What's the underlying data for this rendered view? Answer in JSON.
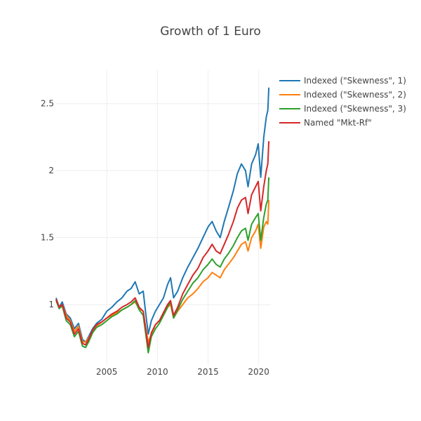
{
  "chart_data": {
    "type": "line",
    "title": "Growth of 1 Euro",
    "xlabel": "",
    "ylabel": "",
    "xlim": [
      2000.0,
      2021.2
    ],
    "ylim": [
      0.55,
      2.75
    ],
    "x_ticks": [
      2005,
      2010,
      2015,
      2020
    ],
    "y_ticks": [
      1,
      1.5,
      2,
      2.5
    ],
    "grid": true,
    "legend_position": "top-right",
    "series": [
      {
        "name": "Indexed (\"Skewness\", 1)",
        "color": "#1f77b4",
        "points": [
          [
            2000.0,
            1.05
          ],
          [
            2000.3,
            0.98
          ],
          [
            2000.6,
            1.02
          ],
          [
            2001.0,
            0.93
          ],
          [
            2001.4,
            0.9
          ],
          [
            2001.8,
            0.82
          ],
          [
            2002.2,
            0.86
          ],
          [
            2002.6,
            0.74
          ],
          [
            2002.9,
            0.72
          ],
          [
            2003.2,
            0.76
          ],
          [
            2003.6,
            0.82
          ],
          [
            2004.0,
            0.86
          ],
          [
            2004.5,
            0.89
          ],
          [
            2005.0,
            0.95
          ],
          [
            2005.5,
            0.98
          ],
          [
            2006.0,
            1.02
          ],
          [
            2006.5,
            1.05
          ],
          [
            2007.0,
            1.1
          ],
          [
            2007.4,
            1.12
          ],
          [
            2007.8,
            1.17
          ],
          [
            2008.2,
            1.08
          ],
          [
            2008.6,
            1.1
          ],
          [
            2008.9,
            0.9
          ],
          [
            2009.1,
            0.78
          ],
          [
            2009.4,
            0.88
          ],
          [
            2009.8,
            0.95
          ],
          [
            2010.2,
            1.0
          ],
          [
            2010.6,
            1.05
          ],
          [
            2011.0,
            1.15
          ],
          [
            2011.3,
            1.2
          ],
          [
            2011.6,
            1.05
          ],
          [
            2012.0,
            1.1
          ],
          [
            2012.5,
            1.2
          ],
          [
            2013.0,
            1.28
          ],
          [
            2013.5,
            1.35
          ],
          [
            2014.0,
            1.42
          ],
          [
            2014.5,
            1.5
          ],
          [
            2015.0,
            1.58
          ],
          [
            2015.4,
            1.62
          ],
          [
            2015.8,
            1.55
          ],
          [
            2016.2,
            1.5
          ],
          [
            2016.6,
            1.62
          ],
          [
            2017.0,
            1.72
          ],
          [
            2017.5,
            1.85
          ],
          [
            2017.9,
            1.98
          ],
          [
            2018.3,
            2.05
          ],
          [
            2018.7,
            2.0
          ],
          [
            2018.95,
            1.88
          ],
          [
            2019.3,
            2.05
          ],
          [
            2019.7,
            2.12
          ],
          [
            2019.95,
            2.2
          ],
          [
            2020.2,
            1.95
          ],
          [
            2020.5,
            2.25
          ],
          [
            2020.75,
            2.4
          ],
          [
            2020.9,
            2.45
          ],
          [
            2021.0,
            2.62
          ]
        ]
      },
      {
        "name": "Indexed (\"Skewness\", 2)",
        "color": "#ff7f0e",
        "points": [
          [
            2000.0,
            1.04
          ],
          [
            2000.3,
            0.98
          ],
          [
            2000.6,
            1.0
          ],
          [
            2001.0,
            0.92
          ],
          [
            2001.4,
            0.88
          ],
          [
            2001.8,
            0.8
          ],
          [
            2002.2,
            0.84
          ],
          [
            2002.6,
            0.72
          ],
          [
            2002.9,
            0.72
          ],
          [
            2003.2,
            0.75
          ],
          [
            2003.6,
            0.8
          ],
          [
            2004.0,
            0.84
          ],
          [
            2004.5,
            0.87
          ],
          [
            2005.0,
            0.9
          ],
          [
            2005.5,
            0.92
          ],
          [
            2006.0,
            0.94
          ],
          [
            2006.5,
            0.96
          ],
          [
            2007.0,
            0.98
          ],
          [
            2007.4,
            1.0
          ],
          [
            2007.8,
            1.02
          ],
          [
            2008.2,
            0.97
          ],
          [
            2008.6,
            0.95
          ],
          [
            2008.9,
            0.8
          ],
          [
            2009.1,
            0.72
          ],
          [
            2009.4,
            0.78
          ],
          [
            2009.8,
            0.85
          ],
          [
            2010.2,
            0.88
          ],
          [
            2010.6,
            0.92
          ],
          [
            2011.0,
            0.98
          ],
          [
            2011.3,
            1.0
          ],
          [
            2011.6,
            0.9
          ],
          [
            2012.0,
            0.95
          ],
          [
            2012.5,
            1.0
          ],
          [
            2013.0,
            1.05
          ],
          [
            2013.5,
            1.08
          ],
          [
            2014.0,
            1.12
          ],
          [
            2014.5,
            1.17
          ],
          [
            2015.0,
            1.2
          ],
          [
            2015.4,
            1.24
          ],
          [
            2015.8,
            1.22
          ],
          [
            2016.2,
            1.2
          ],
          [
            2016.6,
            1.26
          ],
          [
            2017.0,
            1.3
          ],
          [
            2017.5,
            1.35
          ],
          [
            2017.9,
            1.4
          ],
          [
            2018.3,
            1.45
          ],
          [
            2018.7,
            1.47
          ],
          [
            2018.95,
            1.4
          ],
          [
            2019.3,
            1.5
          ],
          [
            2019.7,
            1.55
          ],
          [
            2019.95,
            1.6
          ],
          [
            2020.2,
            1.42
          ],
          [
            2020.5,
            1.58
          ],
          [
            2020.75,
            1.62
          ],
          [
            2020.9,
            1.6
          ],
          [
            2021.0,
            1.78
          ]
        ]
      },
      {
        "name": "Indexed (\"Skewness\", 3)",
        "color": "#2ca02c",
        "points": [
          [
            2000.0,
            1.03
          ],
          [
            2000.3,
            0.97
          ],
          [
            2000.6,
            0.99
          ],
          [
            2001.0,
            0.88
          ],
          [
            2001.4,
            0.85
          ],
          [
            2001.8,
            0.76
          ],
          [
            2002.2,
            0.8
          ],
          [
            2002.6,
            0.69
          ],
          [
            2002.9,
            0.68
          ],
          [
            2003.2,
            0.72
          ],
          [
            2003.6,
            0.79
          ],
          [
            2004.0,
            0.83
          ],
          [
            2004.5,
            0.85
          ],
          [
            2005.0,
            0.88
          ],
          [
            2005.5,
            0.91
          ],
          [
            2006.0,
            0.93
          ],
          [
            2006.5,
            0.96
          ],
          [
            2007.0,
            0.98
          ],
          [
            2007.4,
            1.0
          ],
          [
            2007.8,
            1.03
          ],
          [
            2008.2,
            0.96
          ],
          [
            2008.6,
            0.92
          ],
          [
            2008.9,
            0.75
          ],
          [
            2009.1,
            0.64
          ],
          [
            2009.4,
            0.76
          ],
          [
            2009.8,
            0.82
          ],
          [
            2010.2,
            0.86
          ],
          [
            2010.6,
            0.92
          ],
          [
            2011.0,
            0.98
          ],
          [
            2011.3,
            1.02
          ],
          [
            2011.6,
            0.9
          ],
          [
            2012.0,
            0.96
          ],
          [
            2012.5,
            1.04
          ],
          [
            2013.0,
            1.1
          ],
          [
            2013.5,
            1.16
          ],
          [
            2014.0,
            1.2
          ],
          [
            2014.5,
            1.26
          ],
          [
            2015.0,
            1.3
          ],
          [
            2015.4,
            1.34
          ],
          [
            2015.8,
            1.3
          ],
          [
            2016.2,
            1.28
          ],
          [
            2016.6,
            1.34
          ],
          [
            2017.0,
            1.38
          ],
          [
            2017.5,
            1.44
          ],
          [
            2017.9,
            1.5
          ],
          [
            2018.3,
            1.55
          ],
          [
            2018.7,
            1.57
          ],
          [
            2018.95,
            1.48
          ],
          [
            2019.3,
            1.6
          ],
          [
            2019.7,
            1.65
          ],
          [
            2019.95,
            1.68
          ],
          [
            2020.2,
            1.48
          ],
          [
            2020.5,
            1.65
          ],
          [
            2020.75,
            1.75
          ],
          [
            2020.9,
            1.78
          ],
          [
            2021.0,
            1.95
          ]
        ]
      },
      {
        "name": "Named \"Mkt-Rf\"",
        "color": "#d62728",
        "points": [
          [
            2000.0,
            1.04
          ],
          [
            2000.3,
            0.98
          ],
          [
            2000.6,
            1.0
          ],
          [
            2001.0,
            0.9
          ],
          [
            2001.4,
            0.87
          ],
          [
            2001.8,
            0.78
          ],
          [
            2002.2,
            0.82
          ],
          [
            2002.6,
            0.71
          ],
          [
            2002.9,
            0.7
          ],
          [
            2003.2,
            0.74
          ],
          [
            2003.6,
            0.81
          ],
          [
            2004.0,
            0.85
          ],
          [
            2004.5,
            0.87
          ],
          [
            2005.0,
            0.9
          ],
          [
            2005.5,
            0.93
          ],
          [
            2006.0,
            0.95
          ],
          [
            2006.5,
            0.98
          ],
          [
            2007.0,
            1.0
          ],
          [
            2007.4,
            1.02
          ],
          [
            2007.8,
            1.05
          ],
          [
            2008.2,
            0.98
          ],
          [
            2008.6,
            0.95
          ],
          [
            2008.9,
            0.78
          ],
          [
            2009.1,
            0.68
          ],
          [
            2009.4,
            0.79
          ],
          [
            2009.8,
            0.85
          ],
          [
            2010.2,
            0.88
          ],
          [
            2010.6,
            0.94
          ],
          [
            2011.0,
            1.0
          ],
          [
            2011.3,
            1.03
          ],
          [
            2011.6,
            0.92
          ],
          [
            2012.0,
            0.98
          ],
          [
            2012.5,
            1.08
          ],
          [
            2013.0,
            1.15
          ],
          [
            2013.5,
            1.22
          ],
          [
            2014.0,
            1.27
          ],
          [
            2014.5,
            1.35
          ],
          [
            2015.0,
            1.4
          ],
          [
            2015.4,
            1.45
          ],
          [
            2015.8,
            1.4
          ],
          [
            2016.2,
            1.38
          ],
          [
            2016.6,
            1.45
          ],
          [
            2017.0,
            1.52
          ],
          [
            2017.5,
            1.62
          ],
          [
            2017.9,
            1.72
          ],
          [
            2018.3,
            1.78
          ],
          [
            2018.7,
            1.8
          ],
          [
            2018.95,
            1.68
          ],
          [
            2019.3,
            1.82
          ],
          [
            2019.7,
            1.88
          ],
          [
            2019.95,
            1.92
          ],
          [
            2020.2,
            1.7
          ],
          [
            2020.5,
            1.88
          ],
          [
            2020.75,
            2.0
          ],
          [
            2020.9,
            2.05
          ],
          [
            2021.0,
            2.22
          ]
        ]
      }
    ]
  }
}
